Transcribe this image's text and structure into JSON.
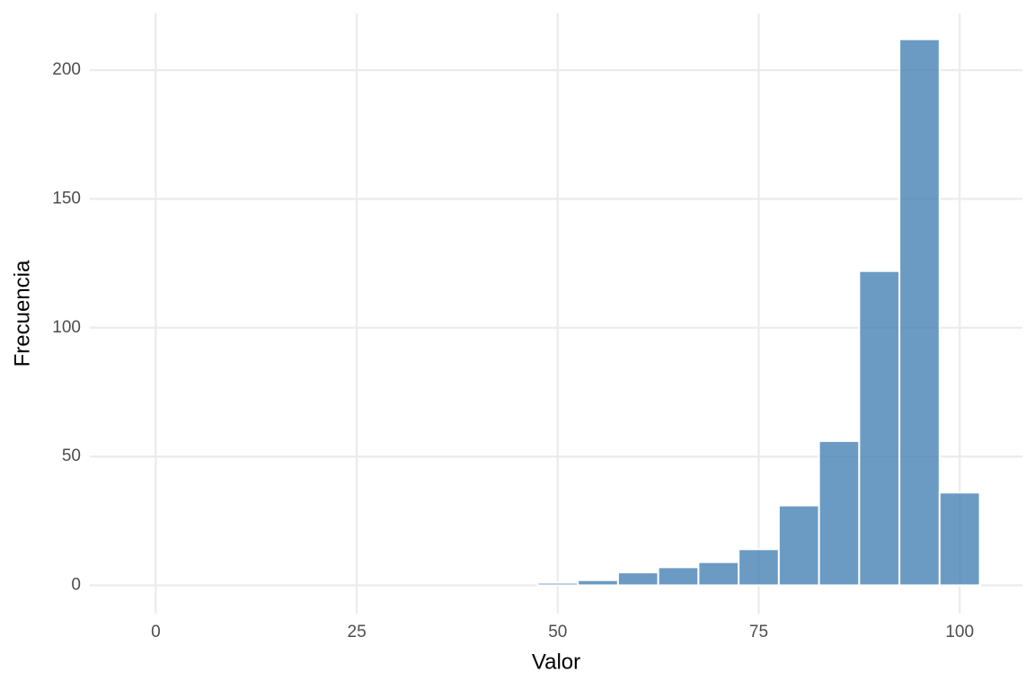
{
  "chart_data": {
    "type": "histogram",
    "x_label": "Valor",
    "y_label": "Frecuencia",
    "bins": [
      -2.5,
      2.5,
      7.5,
      12.5,
      17.5,
      22.5,
      27.5,
      32.5,
      37.5,
      42.5,
      47.5,
      52.5,
      57.5,
      62.5,
      67.5,
      72.5,
      77.5,
      82.5,
      87.5,
      92.5,
      97.5,
      102.5
    ],
    "values": [
      0,
      0,
      0,
      0,
      0,
      0,
      0,
      0,
      0,
      0,
      1,
      2,
      5,
      7,
      9,
      14,
      31,
      56,
      122,
      212,
      36
    ],
    "color": "#4682b4",
    "xlim": [
      -8.2,
      107.8
    ],
    "xticks": [
      0,
      25,
      50,
      75,
      100
    ],
    "ylim": [
      -11,
      222
    ],
    "yticks": [
      0,
      50,
      100,
      150,
      200
    ],
    "grid": true
  }
}
